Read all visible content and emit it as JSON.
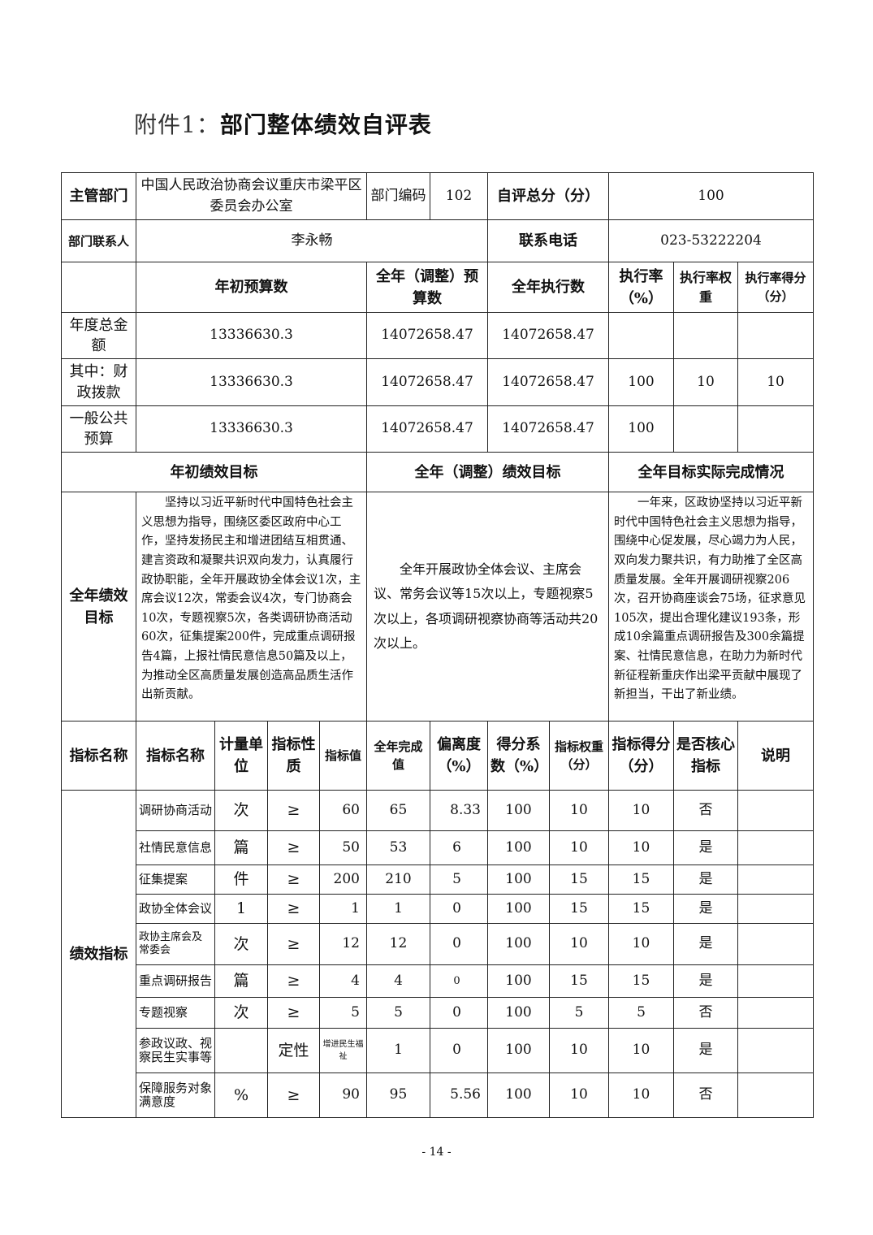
{
  "title": {
    "prefix": "附件1：",
    "main": "部门整体绩效自评表"
  },
  "info": {
    "dept_label": "主管部门",
    "dept_name": "中国人民政治协商会议重庆市梁平区委员会办公室",
    "code_label": "部门编码",
    "code": "102",
    "score_label": "自评总分（分）",
    "score": "100",
    "contact_label": "部门联系人",
    "contact": "李永畅",
    "phone_label": "联系电话",
    "phone": "023-53222204"
  },
  "budget": {
    "headers": [
      "年初预算数",
      "全年（调整）预算数",
      "全年执行数",
      "执行率（%）",
      "执行率权重",
      "执行率得分（分）"
    ],
    "rows": [
      {
        "label": "年度总金额",
        "initial": "13336630.3",
        "adjusted": "14072658.47",
        "executed": "14072658.47",
        "rate": "",
        "weight": "",
        "score": ""
      },
      {
        "label": "其中：财政拨款",
        "initial": "13336630.3",
        "adjusted": "14072658.47",
        "executed": "14072658.47",
        "rate": "100",
        "weight": "10",
        "score": "10"
      },
      {
        "label": "一般公共预算",
        "initial": "13336630.3",
        "adjusted": "14072658.47",
        "executed": "14072658.47",
        "rate": "100",
        "weight": "",
        "score": ""
      }
    ]
  },
  "goals": {
    "headers": [
      "年初绩效目标",
      "全年（调整）绩效目标",
      "全年目标实际完成情况"
    ],
    "label": "全年绩效目标",
    "initial": "坚持以习近平新时代中国特色社会主义思想为指导，围绕区委区政府中心工作，坚持发扬民主和增进团结互相贯通、建言资政和凝聚共识双向发力，认真履行政协职能，全年开展政协全体会议1次，主席会议12次，常委会议4次，专门协商会10次，专题视察5次，各类调研协商活动60次，征集提案200件，完成重点调研报告4篇，上报社情民意信息50篇及以上，为推动全区高质量发展创造高品质生活作出新贡献。",
    "adjusted": "全年开展政协全体会议、主席会议、常务会议等15次以上，专题视察5次以上，各项调研视察协商等活动共20次以上。",
    "actual": "一年来，区政协坚持以习近平新时代中国特色社会主义思想为指导，围绕中心促发展，尽心竭力为人民，双向发力聚共识，有力助推了全区高质量发展。全年开展调研视察206次，召开协商座谈会75场，征求意见105次，提出合理化建议193条，形成10余篇重点调研报告及300余篇提案、社情民意信息，在助力为新时代新征程新重庆作出梁平贡献中展现了新担当，干出了新业绩。"
  },
  "metrics": {
    "headers": [
      "指标名称",
      "指标名称",
      "计量单位",
      "指标性质",
      "指标值",
      "全年完成值",
      "偏离度（%）",
      "得分系数（%）",
      "指标权重（分）",
      "指标得分（分）",
      "是否核心指标",
      "说明"
    ],
    "group": "绩效指标",
    "rows": [
      {
        "name": "调研协商活动",
        "unit": "次",
        "nature": "≥",
        "target": "60",
        "done": "65",
        "dev": "8.33",
        "coef": "100",
        "weight": "10",
        "score": "10",
        "core": "否",
        "note": ""
      },
      {
        "name": "社情民意信息",
        "unit": "篇",
        "nature": "≥",
        "target": "50",
        "done": "53",
        "dev": "6",
        "coef": "100",
        "weight": "10",
        "score": "10",
        "core": "是",
        "note": ""
      },
      {
        "name": "征集提案",
        "unit": "件",
        "nature": "≥",
        "target": "200",
        "done": "210",
        "dev": "5",
        "coef": "100",
        "weight": "15",
        "score": "15",
        "core": "是",
        "note": ""
      },
      {
        "name": "政协全体会议",
        "unit": "1",
        "nature": "≥",
        "target": "1",
        "done": "1",
        "dev": "0",
        "coef": "100",
        "weight": "15",
        "score": "15",
        "core": "是",
        "note": ""
      },
      {
        "name": "政协主席会及常委会",
        "unit": "次",
        "nature": "≥",
        "target": "12",
        "done": "12",
        "dev": "0",
        "coef": "100",
        "weight": "10",
        "score": "10",
        "core": "是",
        "note": ""
      },
      {
        "name": "重点调研报告",
        "unit": "篇",
        "nature": "≥",
        "target": "4",
        "done": "4",
        "dev": "0",
        "coef": "100",
        "weight": "15",
        "score": "15",
        "core": "是",
        "note": ""
      },
      {
        "name": "专题视察",
        "unit": "次",
        "nature": "≥",
        "target": "5",
        "done": "5",
        "dev": "0",
        "coef": "100",
        "weight": "5",
        "score": "5",
        "core": "否",
        "note": ""
      },
      {
        "name": "参政议政、视察民生实事等",
        "unit": "",
        "nature": "定性",
        "target": "增进民生福祉",
        "done": "1",
        "dev": "0",
        "coef": "100",
        "weight": "10",
        "score": "10",
        "core": "是",
        "note": ""
      },
      {
        "name": "保障服务对象满意度",
        "unit": "%",
        "nature": "≥",
        "target": "90",
        "done": "95",
        "dev": "5.56",
        "coef": "100",
        "weight": "10",
        "score": "10",
        "core": "否",
        "note": ""
      }
    ]
  },
  "footer": "- 14 -"
}
